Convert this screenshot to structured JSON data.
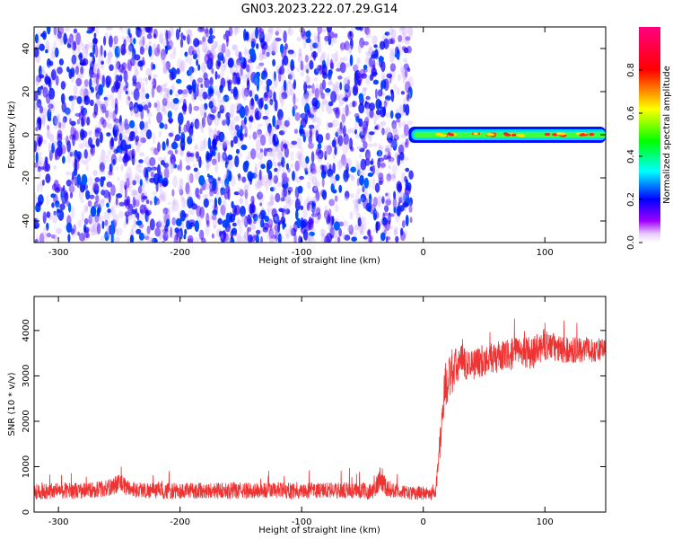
{
  "title": "GN03.2023.222.07.29.G14",
  "colors": {
    "snr_line": "#ee3333",
    "axis": "#000000",
    "background": "#ffffff"
  },
  "chart_data": [
    {
      "type": "heatmap",
      "xlabel": "Height of straight line (km)",
      "ylabel": "Frequency (Hz)",
      "xlim": [
        -320,
        150
      ],
      "ylim": [
        -50,
        50
      ],
      "xticks": [
        -300,
        -200,
        -100,
        0,
        100
      ],
      "yticks": [
        -40,
        -20,
        0,
        20,
        40
      ],
      "colorbar": {
        "label": "Normalized spectral amplitude",
        "range": [
          0,
          1
        ],
        "ticks": [
          0.0,
          0.2,
          0.4,
          0.6,
          0.8
        ],
        "colormap": [
          "#ffffff",
          "#a000ff",
          "#0000ff",
          "#00ffff",
          "#00ff00",
          "#ffff00",
          "#ff0000",
          "#ff0080"
        ]
      },
      "noise_region": {
        "x": [
          -320,
          -10
        ],
        "amplitude": [
          0.0,
          0.35
        ]
      },
      "signal_band": {
        "x": [
          -12,
          150
        ],
        "center_freq": 0,
        "half_width": 2.5,
        "peak_amplitude": [
          0.7,
          0.85
        ],
        "peak_x": [
          20,
          50,
          75,
          110,
          135
        ]
      }
    },
    {
      "type": "line",
      "xlabel": "Height of straight line (km)",
      "ylabel": "SNR (10 * v/v)",
      "xlim": [
        -320,
        150
      ],
      "ylim": [
        0,
        4750
      ],
      "xticks": [
        -300,
        -200,
        -100,
        0,
        100
      ],
      "yticks": [
        0,
        1000,
        2000,
        3000,
        4000
      ],
      "series": [
        {
          "x": [
            -320,
            -300,
            -280,
            -260,
            -250,
            -240,
            -220,
            -200,
            -180,
            -160,
            -140,
            -120,
            -100,
            -80,
            -60,
            -40,
            -35,
            -30,
            -20,
            -10,
            0,
            10,
            14,
            18,
            25,
            30,
            35,
            40,
            50,
            60,
            70,
            80,
            90,
            100,
            110,
            120,
            130,
            140,
            150
          ],
          "values": [
            450,
            480,
            470,
            520,
            640,
            500,
            470,
            460,
            480,
            470,
            470,
            480,
            460,
            480,
            470,
            460,
            800,
            520,
            450,
            420,
            420,
            400,
            1600,
            2800,
            3100,
            3300,
            3250,
            3250,
            3350,
            3400,
            3450,
            3550,
            3500,
            3700,
            3600,
            3550,
            3600,
            3550,
            3600
          ],
          "noise": [
            180,
            180,
            180,
            180,
            220,
            180,
            180,
            180,
            180,
            180,
            180,
            180,
            180,
            180,
            180,
            180,
            300,
            200,
            150,
            150,
            150,
            150,
            400,
            500,
            450,
            450,
            350,
            350,
            350,
            350,
            350,
            350,
            350,
            350,
            300,
            300,
            300,
            250,
            250
          ]
        }
      ]
    }
  ]
}
